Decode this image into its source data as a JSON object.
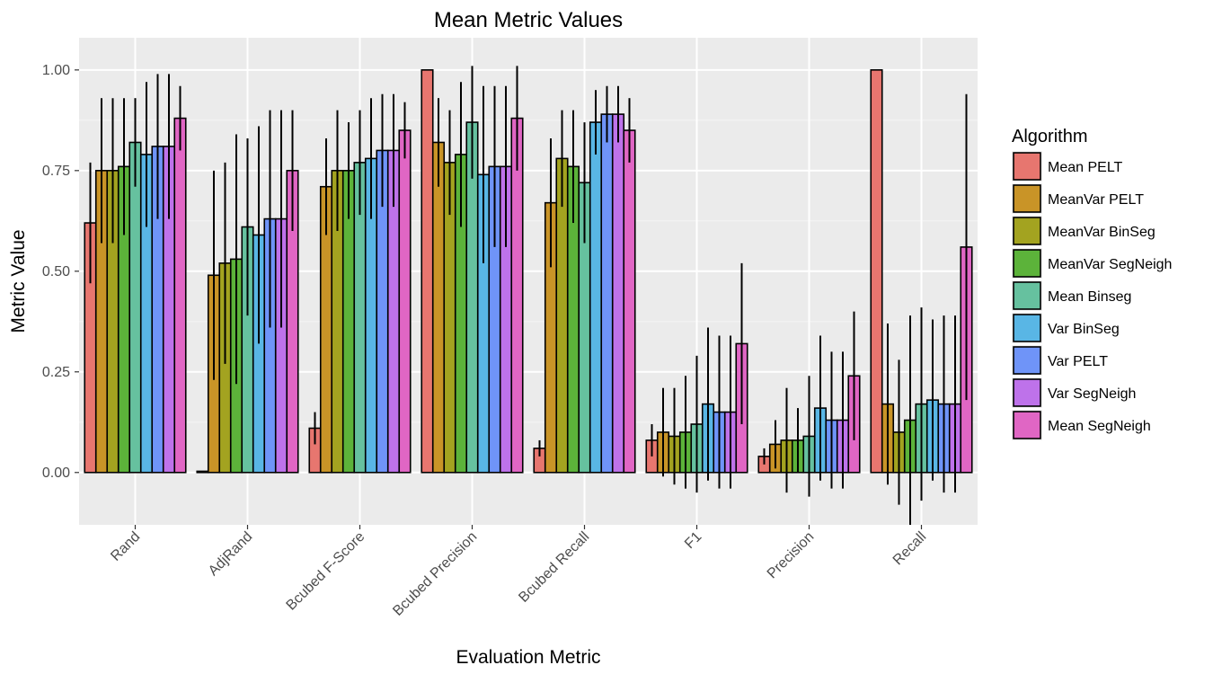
{
  "chart_data": {
    "type": "bar",
    "title": "Mean Metric Values",
    "xlabel": "Evaluation Metric",
    "ylabel": "Metric Value",
    "ylim": [
      -0.13,
      1.08
    ],
    "yticks": [
      0.0,
      0.25,
      0.5,
      0.75,
      1.0
    ],
    "ytick_labels": [
      "0.00",
      "0.25",
      "0.50",
      "0.75",
      "1.00"
    ],
    "grid": true,
    "legend_position": "right",
    "legend_title": "Algorithm",
    "categories": [
      "Rand",
      "AdjRand",
      "Bcubed F-Score",
      "Bcubed Precision",
      "Bcubed Recall",
      "F1",
      "Precision",
      "Recall"
    ],
    "series": [
      {
        "name": "Mean PELT",
        "color": "#E7766F",
        "values": [
          0.62,
          0.003,
          0.11,
          1.0,
          0.06,
          0.08,
          0.04,
          1.0
        ],
        "errors": [
          0.15,
          0.0,
          0.04,
          0.0,
          0.02,
          0.04,
          0.02,
          0.0
        ]
      },
      {
        "name": "MeanVar PELT",
        "color": "#C99427",
        "values": [
          0.75,
          0.49,
          0.71,
          0.82,
          0.67,
          0.1,
          0.07,
          0.17
        ],
        "errors": [
          0.18,
          0.26,
          0.12,
          0.11,
          0.16,
          0.11,
          0.06,
          0.2
        ]
      },
      {
        "name": "MeanVar BinSeg",
        "color": "#A3A320",
        "values": [
          0.75,
          0.52,
          0.75,
          0.77,
          0.78,
          0.09,
          0.08,
          0.1
        ],
        "errors": [
          0.18,
          0.25,
          0.15,
          0.13,
          0.12,
          0.12,
          0.13,
          0.18
        ]
      },
      {
        "name": "MeanVar SegNeigh",
        "color": "#5CB33A",
        "values": [
          0.76,
          0.53,
          0.75,
          0.79,
          0.76,
          0.1,
          0.08,
          0.13
        ],
        "errors": [
          0.17,
          0.31,
          0.12,
          0.18,
          0.14,
          0.14,
          0.08,
          0.26
        ]
      },
      {
        "name": "Mean Binseg",
        "color": "#66C19F",
        "values": [
          0.82,
          0.61,
          0.77,
          0.87,
          0.72,
          0.12,
          0.09,
          0.17
        ],
        "errors": [
          0.11,
          0.22,
          0.13,
          0.14,
          0.15,
          0.17,
          0.15,
          0.24
        ]
      },
      {
        "name": "Var BinSeg",
        "color": "#59B6E5",
        "values": [
          0.79,
          0.59,
          0.78,
          0.74,
          0.87,
          0.17,
          0.16,
          0.18
        ],
        "errors": [
          0.18,
          0.27,
          0.15,
          0.22,
          0.08,
          0.19,
          0.18,
          0.2
        ]
      },
      {
        "name": "Var PELT",
        "color": "#6F94F8",
        "values": [
          0.81,
          0.63,
          0.8,
          0.76,
          0.89,
          0.15,
          0.13,
          0.17
        ],
        "errors": [
          0.18,
          0.27,
          0.14,
          0.2,
          0.07,
          0.19,
          0.17,
          0.22
        ]
      },
      {
        "name": "Var SegNeigh",
        "color": "#BE72EA",
        "values": [
          0.81,
          0.63,
          0.8,
          0.76,
          0.89,
          0.15,
          0.13,
          0.17
        ],
        "errors": [
          0.18,
          0.27,
          0.14,
          0.2,
          0.07,
          0.19,
          0.17,
          0.22
        ]
      },
      {
        "name": "Mean SegNeigh",
        "color": "#E066C4",
        "values": [
          0.88,
          0.75,
          0.85,
          0.88,
          0.85,
          0.32,
          0.24,
          0.56
        ],
        "errors": [
          0.08,
          0.15,
          0.07,
          0.13,
          0.08,
          0.2,
          0.16,
          0.38
        ]
      }
    ]
  }
}
